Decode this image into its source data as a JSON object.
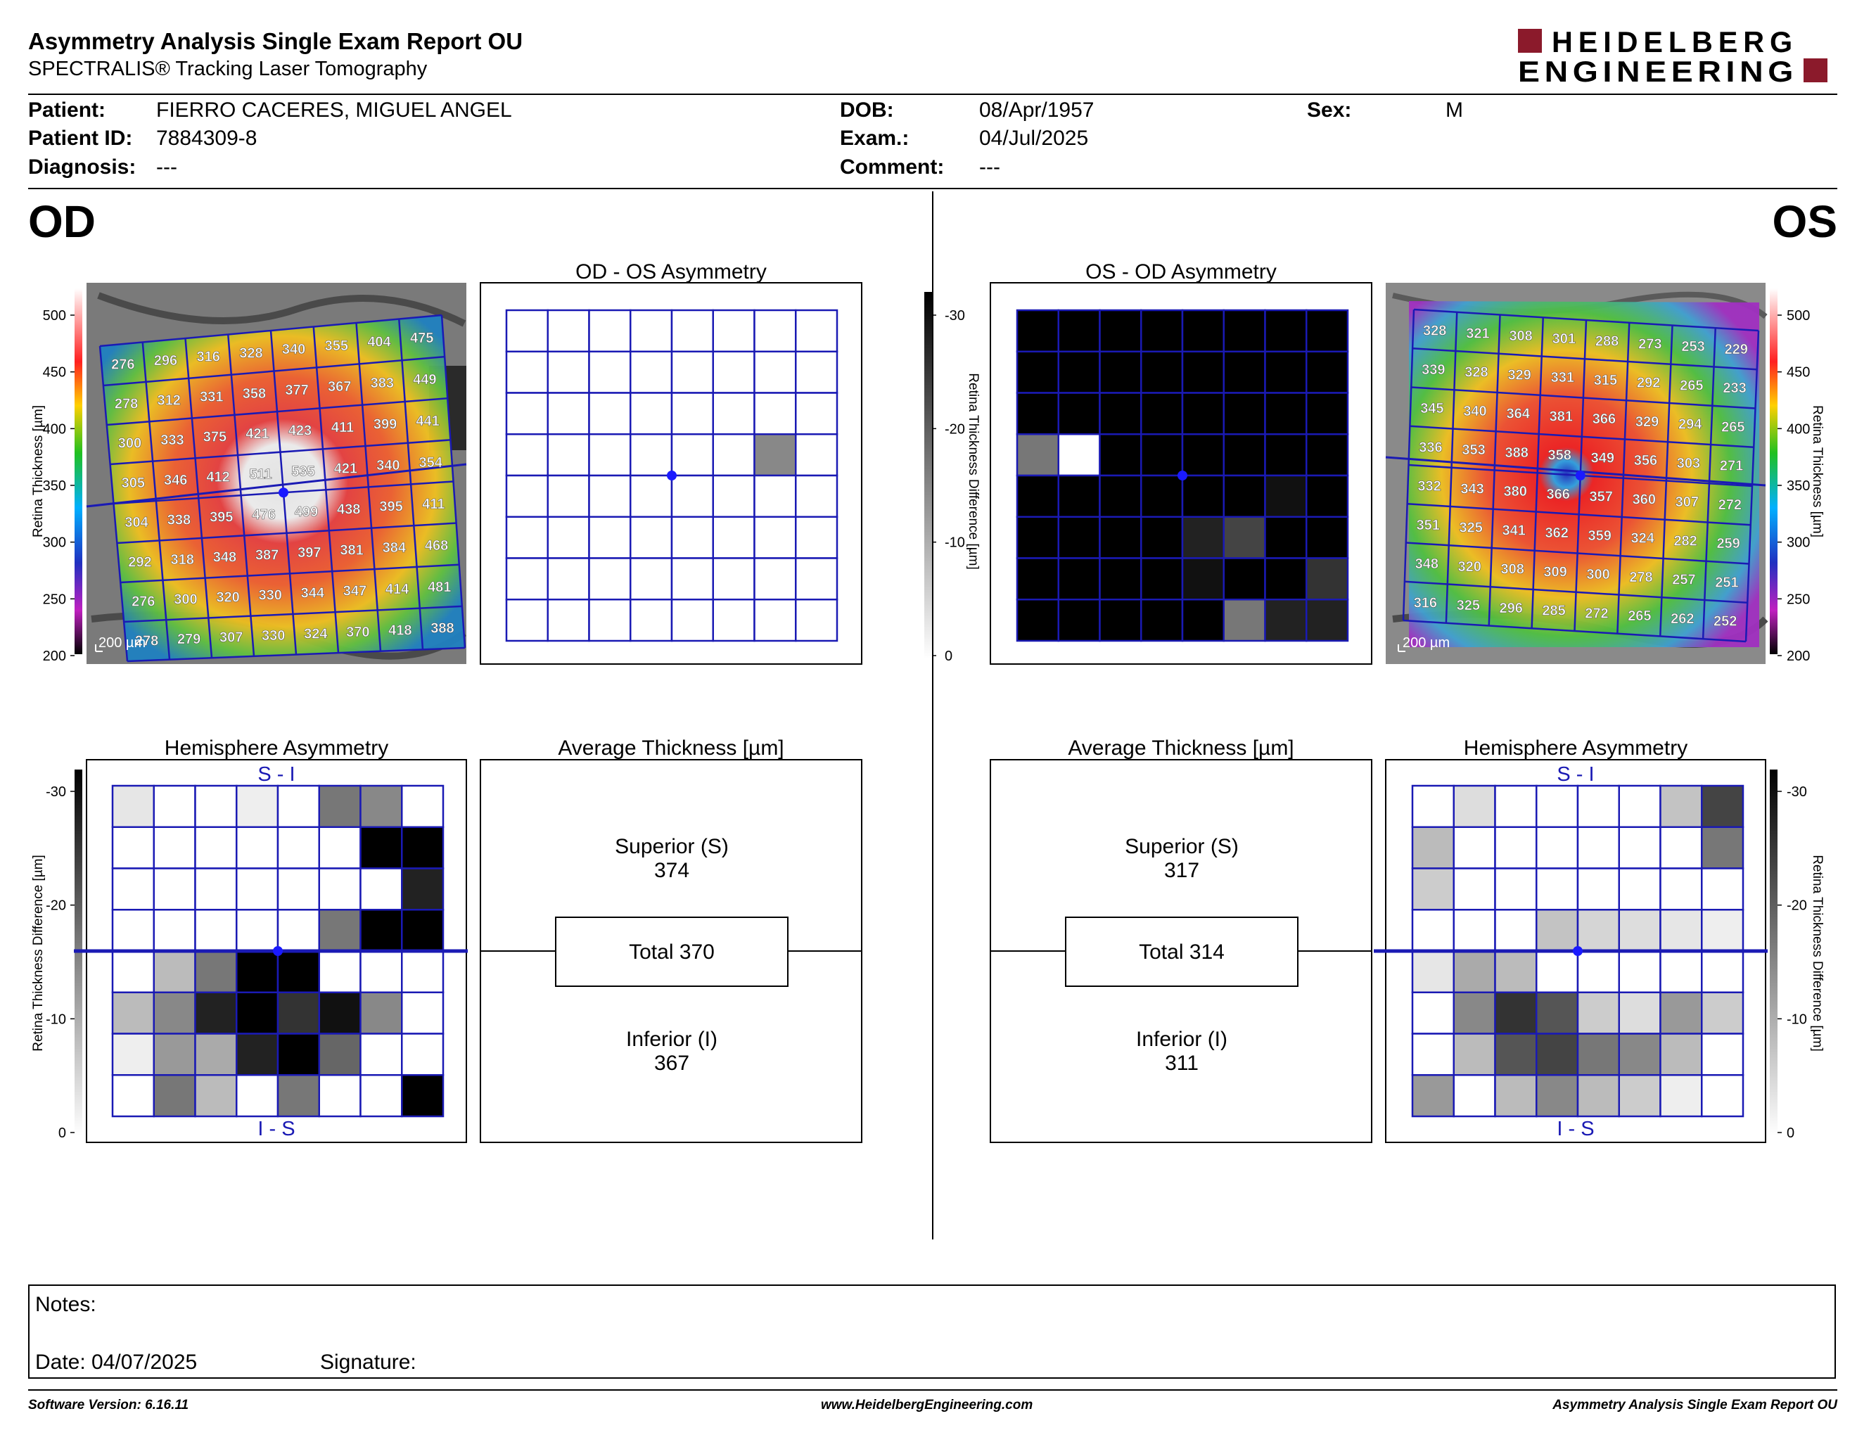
{
  "header": {
    "title": "Asymmetry Analysis Single Exam Report OU",
    "subtitle": "SPECTRALIS® Tracking Laser Tomography",
    "logo_line1": "HEIDELBERG",
    "logo_line2": "ENGINEERING",
    "brand_color": "#8b1a2b"
  },
  "patient": {
    "patient_label": "Patient:",
    "patient_value": "FIERRO CACERES, MIGUEL ANGEL",
    "id_label": "Patient ID:",
    "id_value": "7884309-8",
    "diagnosis_label": "Diagnosis:",
    "diagnosis_value": "---",
    "dob_label": "DOB:",
    "dob_value": "08/Apr/1957",
    "exam_label": "Exam.:",
    "exam_value": "04/Jul/2025",
    "comment_label": "Comment:",
    "comment_value": "---",
    "sex_label": "Sex:",
    "sex_value": "M"
  },
  "eyes": {
    "od": "OD",
    "os": "OS"
  },
  "od": {
    "thickness_grid": [
      [
        276,
        296,
        316,
        328,
        340,
        355,
        404,
        475
      ],
      [
        278,
        312,
        331,
        358,
        377,
        367,
        383,
        449
      ],
      [
        300,
        333,
        375,
        421,
        423,
        411,
        399,
        441
      ],
      [
        305,
        346,
        412,
        511,
        535,
        421,
        340,
        354
      ],
      [
        304,
        338,
        395,
        476,
        499,
        438,
        395,
        411
      ],
      [
        292,
        318,
        348,
        387,
        397,
        381,
        384,
        468
      ],
      [
        276,
        300,
        320,
        330,
        344,
        347,
        414,
        481
      ],
      [
        278,
        279,
        307,
        330,
        324,
        370,
        418,
        388
      ]
    ],
    "asymmetry_title": "OD - OS Asymmetry",
    "asymmetry_grid": [
      [
        0,
        0,
        0,
        0,
        0,
        0,
        0,
        0
      ],
      [
        0,
        0,
        0,
        0,
        0,
        0,
        0,
        0
      ],
      [
        0,
        0,
        0,
        0,
        0,
        0,
        0,
        0
      ],
      [
        0,
        0,
        0,
        0,
        0,
        0,
        14,
        0
      ],
      [
        0,
        0,
        0,
        0,
        0,
        0,
        0,
        0
      ],
      [
        0,
        0,
        0,
        0,
        0,
        0,
        0,
        0
      ],
      [
        0,
        0,
        0,
        0,
        0,
        0,
        0,
        0
      ],
      [
        0,
        0,
        0,
        0,
        0,
        0,
        0,
        0
      ]
    ],
    "hemisphere_title": "Hemisphere Asymmetry",
    "hemisphere_grid": [
      [
        3,
        0,
        0,
        2,
        0,
        16,
        14,
        0
      ],
      [
        0,
        0,
        0,
        0,
        0,
        0,
        30,
        30
      ],
      [
        0,
        0,
        0,
        0,
        0,
        0,
        0,
        26
      ],
      [
        0,
        0,
        0,
        0,
        0,
        16,
        30,
        30
      ],
      [
        0,
        8,
        16,
        30,
        30,
        0,
        0,
        0
      ],
      [
        8,
        14,
        26,
        30,
        24,
        28,
        14,
        0
      ],
      [
        2,
        12,
        10,
        26,
        30,
        18,
        0,
        0
      ],
      [
        0,
        16,
        8,
        0,
        16,
        0,
        0,
        30
      ]
    ],
    "average_title": "Average Thickness [µm]",
    "superior_label": "Superior (S)",
    "superior_value": "374",
    "total_text": "Total 370",
    "inferior_label": "Inferior (I)",
    "inferior_value": "367"
  },
  "os": {
    "thickness_grid": [
      [
        328,
        321,
        308,
        301,
        288,
        273,
        253,
        229
      ],
      [
        339,
        328,
        329,
        331,
        315,
        292,
        265,
        233
      ],
      [
        345,
        340,
        364,
        381,
        366,
        329,
        294,
        265
      ],
      [
        336,
        353,
        388,
        358,
        349,
        356,
        303,
        271
      ],
      [
        332,
        343,
        380,
        366,
        357,
        360,
        307,
        272
      ],
      [
        351,
        325,
        341,
        362,
        359,
        324,
        282,
        259
      ],
      [
        348,
        320,
        308,
        309,
        300,
        278,
        257,
        251
      ],
      [
        316,
        325,
        296,
        285,
        272,
        265,
        262,
        252
      ]
    ],
    "asymmetry_title": "OS - OD Asymmetry",
    "asymmetry_grid": [
      [
        30,
        30,
        30,
        30,
        30,
        30,
        30,
        30
      ],
      [
        30,
        30,
        30,
        30,
        30,
        30,
        30,
        30
      ],
      [
        30,
        30,
        30,
        30,
        30,
        30,
        30,
        30
      ],
      [
        16,
        0,
        30,
        30,
        30,
        30,
        30,
        30
      ],
      [
        30,
        30,
        30,
        30,
        30,
        30,
        28,
        30
      ],
      [
        30,
        30,
        30,
        30,
        26,
        22,
        30,
        30
      ],
      [
        30,
        30,
        30,
        30,
        28,
        30,
        30,
        24
      ],
      [
        30,
        30,
        30,
        30,
        30,
        16,
        26,
        26
      ]
    ],
    "hemisphere_title": "Hemisphere Asymmetry",
    "hemisphere_grid": [
      [
        0,
        4,
        0,
        0,
        0,
        0,
        7,
        22
      ],
      [
        8,
        0,
        0,
        0,
        0,
        0,
        0,
        16
      ],
      [
        6,
        0,
        0,
        0,
        0,
        0,
        0,
        0
      ],
      [
        0,
        0,
        0,
        7,
        5,
        4,
        3,
        2
      ],
      [
        3,
        10,
        8,
        0,
        0,
        0,
        0,
        0
      ],
      [
        0,
        14,
        24,
        20,
        6,
        4,
        12,
        6
      ],
      [
        0,
        8,
        20,
        22,
        16,
        14,
        8,
        0
      ],
      [
        12,
        0,
        8,
        14,
        8,
        6,
        2,
        0
      ]
    ],
    "average_title": "Average Thickness [µm]",
    "superior_label": "Superior (S)",
    "superior_value": "317",
    "total_text": "Total 314",
    "inferior_label": "Inferior (I)",
    "inferior_value": "311"
  },
  "labels": {
    "s_i": "S - I",
    "i_s": "I - S",
    "scale_bar": "200 µm",
    "retina_thickness_axis": "Retina   Thickness [µm]",
    "retina_diff_axis": "Retina Thickness Difference [µm]"
  },
  "thickness_scale_ticks": [
    "500",
    "450",
    "400",
    "350",
    "300",
    "250",
    "200"
  ],
  "diff_scale_ticks": [
    "-30",
    "-20",
    "-10",
    "0"
  ],
  "notes": {
    "notes_label": "Notes:",
    "date_label": "Date: 04/07/2025",
    "signature_label": "Signature:"
  },
  "footer": {
    "software": "Software Version: 6.16.11",
    "website": "www.HeidelbergEngineering.com",
    "report": "Asymmetry Analysis Single Exam Report OU"
  },
  "colors": {
    "grid_blue": "#1a1ab4",
    "grid_dot": "#1a1aff"
  }
}
